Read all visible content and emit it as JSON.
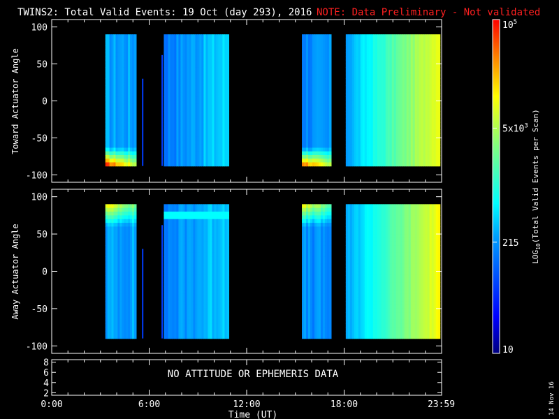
{
  "title": "TWINS2: Total Valid Events: 19 Oct (day 293), 2016",
  "note": "NOTE: Data Preliminary - Not validated",
  "colors": {
    "note": "#ff2020",
    "background": "#000000",
    "axis": "#ffffff"
  },
  "date_stamp": "14 Nov 16",
  "footer_message": "NO ATTITUDE OR EPHEMERIS DATA",
  "chart_data": [
    {
      "type": "heatmap",
      "panel": "toward",
      "ylabel": "Toward Actuator Angle",
      "ylim": [
        -110,
        110
      ],
      "yticks": [
        "100",
        "50",
        "0",
        "-50",
        "-100"
      ],
      "ytick_values": [
        100,
        50,
        0,
        -50,
        -100
      ],
      "xlim": [
        0,
        24
      ],
      "angle_range": [
        -88,
        90
      ],
      "segments": [
        {
          "start": 3.3,
          "end": 5.2,
          "base": 0.35
        },
        {
          "start": 6.9,
          "end": 10.9,
          "base": 0.32
        },
        {
          "start": 15.4,
          "end": 17.2,
          "base": 0.32
        },
        {
          "start": 18.1,
          "end": 23.9,
          "base": 0.45
        }
      ],
      "spikes": [
        {
          "time": 5.6,
          "top": 30
        },
        {
          "time": 6.8,
          "top": 62
        }
      ]
    },
    {
      "type": "heatmap",
      "panel": "away",
      "ylabel": "Away Actuator Angle",
      "ylim": [
        -110,
        110
      ],
      "yticks": [
        "100",
        "50",
        "0",
        "-50",
        "-100"
      ],
      "ytick_values": [
        100,
        50,
        0,
        -50,
        -100
      ],
      "xlim": [
        0,
        24
      ],
      "angle_range": [
        -90,
        90
      ],
      "segments": [
        {
          "start": 3.3,
          "end": 5.2,
          "base": 0.35
        },
        {
          "start": 6.9,
          "end": 10.9,
          "base": 0.32
        },
        {
          "start": 15.4,
          "end": 17.2,
          "base": 0.32
        },
        {
          "start": 18.1,
          "end": 23.9,
          "base": 0.45
        }
      ],
      "spikes": [
        {
          "time": 5.6,
          "top": 30
        },
        {
          "time": 6.8,
          "top": 62
        }
      ]
    },
    {
      "type": "line",
      "panel": "ephemeris",
      "yticks": [
        "8",
        "6",
        "4",
        "2"
      ],
      "ytick_values": [
        8,
        6,
        4,
        2
      ],
      "ylim": [
        1.5,
        8.5
      ],
      "message": "NO ATTITUDE OR EPHEMERIS DATA"
    }
  ],
  "xaxis": {
    "label": "Time (UT)",
    "ticks": [
      "0:00",
      "6:00",
      "12:00",
      "18:00",
      "23:59"
    ],
    "tick_hours": [
      0,
      6,
      12,
      18,
      23.98
    ],
    "xlim": [
      0,
      24
    ]
  },
  "colorbar": {
    "label": "LOG10(Total Valid Events per Scan)",
    "label_main": "LOG",
    "label_sub": "10",
    "label_rest": "(Total Valid Events per Scan)",
    "range": [
      10,
      100000
    ],
    "scale": "log",
    "ticks": [
      {
        "main": "10",
        "sup": "5",
        "value": 100000
      },
      {
        "main": "5x10",
        "sup": "3",
        "value": 5000
      },
      {
        "main": "215",
        "sup": "",
        "value": 215
      },
      {
        "main": "10",
        "sup": "",
        "value": 10
      }
    ]
  }
}
